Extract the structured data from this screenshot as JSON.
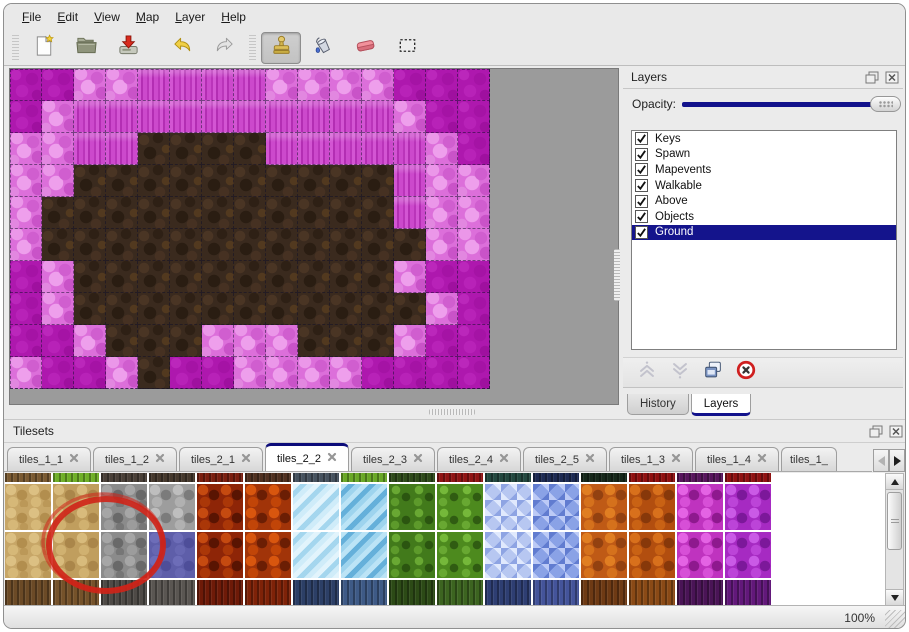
{
  "menu": {
    "items": [
      "File",
      "Edit",
      "View",
      "Map",
      "Layer",
      "Help"
    ]
  },
  "toolbar": {
    "items": [
      {
        "type": "handle"
      },
      {
        "type": "button",
        "name": "new-file",
        "icon": "new-file-icon"
      },
      {
        "type": "button",
        "name": "open-file",
        "icon": "open-file-icon"
      },
      {
        "type": "button",
        "name": "save-file",
        "icon": "save-file-icon"
      },
      {
        "type": "gap"
      },
      {
        "type": "button",
        "name": "undo",
        "icon": "undo-icon"
      },
      {
        "type": "button",
        "name": "redo",
        "icon": "redo-icon"
      },
      {
        "type": "handle"
      },
      {
        "type": "button",
        "name": "stamp-tool",
        "icon": "stamp-icon",
        "active": true
      },
      {
        "type": "button",
        "name": "fill-tool",
        "icon": "fill-icon"
      },
      {
        "type": "button",
        "name": "eraser-tool",
        "icon": "eraser-icon"
      },
      {
        "type": "button",
        "name": "select-tool",
        "icon": "select-icon"
      }
    ]
  },
  "map_view": {
    "tile_size": 32,
    "grid": [
      "DDLLMMMMLLLLDDD",
      "DLMMMMMMMMMMLDD",
      "LLMMBBBBMMMMMLD",
      "LLBBBBBBBBBBMLL",
      "LBBBBBBBBBBBMLL",
      "LBBBBBBBBBBBBLL",
      "DLBBBBBBBBBBLDD",
      "DLBBBBBBBBBBBLD",
      "DDLBBBLLLBBBLDD",
      "LDDLBDDLLLLDDDD"
    ],
    "palette": {
      "D": "#ae18ae",
      "M": "#c63ec6",
      "L": "#dc6fda",
      "B": "#3a2a1e"
    }
  },
  "layers_panel": {
    "title": "Layers",
    "opacity_label": "Opacity:",
    "opacity_percent": 100,
    "layers": [
      {
        "name": "Keys",
        "checked": true,
        "selected": false
      },
      {
        "name": "Spawn",
        "checked": true,
        "selected": false
      },
      {
        "name": "Mapevents",
        "checked": true,
        "selected": false
      },
      {
        "name": "Walkable",
        "checked": true,
        "selected": false
      },
      {
        "name": "Above",
        "checked": true,
        "selected": false
      },
      {
        "name": "Objects",
        "checked": true,
        "selected": false
      },
      {
        "name": "Ground",
        "checked": true,
        "selected": true
      }
    ],
    "buttons": [
      "move-layer-up",
      "move-layer-down",
      "duplicate-layer",
      "delete-layer"
    ],
    "tabs": [
      {
        "label": "History",
        "active": false
      },
      {
        "label": "Layers",
        "active": true
      }
    ]
  },
  "tilesets_panel": {
    "title": "Tilesets",
    "tabs": [
      {
        "label": "tiles_1_1",
        "active": false
      },
      {
        "label": "tiles_1_2",
        "active": false
      },
      {
        "label": "tiles_2_1",
        "active": false
      },
      {
        "label": "tiles_2_2",
        "active": true
      },
      {
        "label": "tiles_2_3",
        "active": false
      },
      {
        "label": "tiles_2_4",
        "active": false
      },
      {
        "label": "tiles_2_5",
        "active": false
      },
      {
        "label": "tiles_1_3",
        "active": false
      },
      {
        "label": "tiles_1_4",
        "active": false
      },
      {
        "label": "tiles_1_",
        "active": false,
        "truncated": true
      }
    ],
    "tileset": {
      "columns": [
        "tan",
        "tan2",
        "gray",
        "gray2",
        "lava",
        "lava2",
        "ice",
        "ice2",
        "vine",
        "vine2",
        "crystal",
        "crystal2",
        "orange",
        "orange2",
        "magenta",
        "purple"
      ],
      "top_strip_colors": [
        "#7a5a32",
        "#6faf28",
        "#4a4038",
        "#45382c",
        "#7a1f10",
        "#4f3020",
        "#46525e",
        "#69a826",
        "#2e4a1a",
        "#8f1414",
        "#23483f",
        "#1d2a52",
        "#16281a",
        "#8f1010",
        "#57155c",
        "#8f1212"
      ],
      "bottom_row_colors": [
        "#6b4a26",
        "#75522a",
        "#4e4a46",
        "#5a5652",
        "#6e1a08",
        "#7e2208",
        "#2c3f66",
        "#3e5a86",
        "#2c4a16",
        "#3c6420",
        "#2e3e72",
        "#44549a",
        "#6e3a14",
        "#8a4a16",
        "#4a1456",
        "#62187a"
      ],
      "selected_tile": {
        "col": 3,
        "row": 1
      },
      "annotation_circle_color": "#cf2318"
    }
  },
  "status_bar": {
    "zoom_level": "100%"
  },
  "colors": {
    "accent_navy": "#12128c",
    "selection_blue": "#2a2ab2",
    "window_bg": "#ebebeb"
  }
}
